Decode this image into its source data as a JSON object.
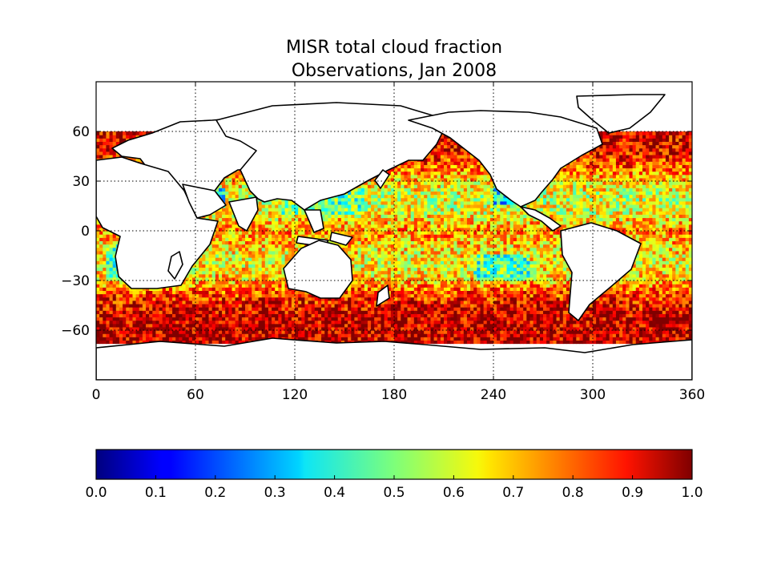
{
  "chart_data": {
    "type": "heatmap",
    "title": "MISR total cloud fraction",
    "subtitle": "Observations, Jan 2008",
    "xlim": [
      0,
      360
    ],
    "ylim": [
      -90,
      90
    ],
    "x_ticks": [
      "0",
      "60",
      "120",
      "180",
      "240",
      "300",
      "360"
    ],
    "y_ticks": [
      "60",
      "30",
      "0",
      "−30",
      "−60"
    ],
    "x_tick_values": [
      0,
      60,
      120,
      180,
      240,
      300,
      360
    ],
    "y_tick_values": [
      60,
      30,
      0,
      -30,
      -60
    ],
    "grid": "dotted",
    "colormap": "jet",
    "colorbar": {
      "orientation": "horizontal",
      "range": [
        0.0,
        1.0
      ],
      "ticks": [
        "0.0",
        "0.1",
        "0.2",
        "0.3",
        "0.4",
        "0.5",
        "0.6",
        "0.7",
        "0.8",
        "0.9",
        "1.0"
      ],
      "tick_values": [
        0.0,
        0.1,
        0.2,
        0.3,
        0.4,
        0.5,
        0.6,
        0.7,
        0.8,
        0.9,
        1.0
      ]
    },
    "zonal_profile": {
      "lat": [
        -67,
        -60,
        -50,
        -40,
        -30,
        -20,
        -10,
        0,
        10,
        20,
        30,
        40,
        50,
        60
      ],
      "value": [
        0.93,
        0.94,
        0.92,
        0.85,
        0.68,
        0.62,
        0.66,
        0.74,
        0.62,
        0.58,
        0.66,
        0.8,
        0.9,
        0.9
      ]
    },
    "low_cloud_regions": [
      {
        "lon": [
          240,
          252
        ],
        "lat": [
          15,
          30
        ],
        "value": 0.22
      },
      {
        "lon": [
          60,
          76
        ],
        "lat": [
          15,
          25
        ],
        "value": 0.22
      },
      {
        "lon": [
          228,
          260
        ],
        "lat": [
          -30,
          -15
        ],
        "value": 0.35
      },
      {
        "lon": [
          6,
          16
        ],
        "lat": [
          -30,
          -10
        ],
        "value": 0.35
      },
      {
        "lon": [
          112,
          160
        ],
        "lat": [
          10,
          25
        ],
        "value": 0.4
      }
    ],
    "colors": {
      "coast": "#000000",
      "land": "#ffffff",
      "frame": "#000000"
    }
  }
}
